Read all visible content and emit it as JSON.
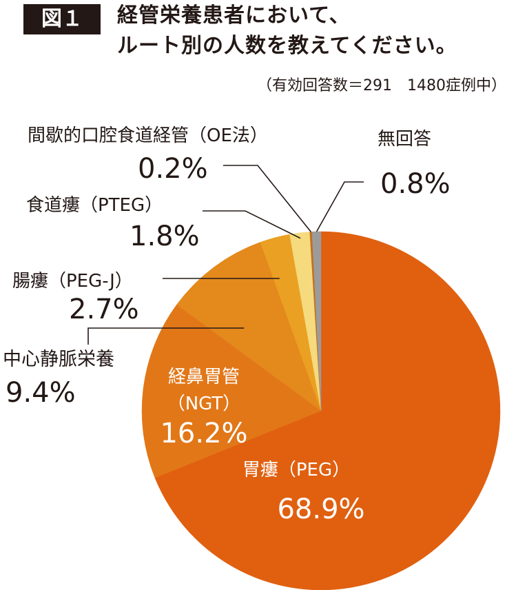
{
  "figure": {
    "badge": "図１",
    "title_line1": "経管栄養患者において、",
    "title_line2": "ルート別の人数を教えてください。",
    "note": "（有効回答数＝291　1480症例中）"
  },
  "chart_data": {
    "type": "pie",
    "start_angle": "12 o'clock, clockwise",
    "slices": [
      {
        "label": "胃瘻（PEG）",
        "label_lines": [
          "胃瘻（PEG）"
        ],
        "value_text": "68.9%",
        "value": 68.9,
        "color": "#E06010"
      },
      {
        "label": "経鼻胃管（NGT）",
        "label_lines": [
          "経鼻胃管",
          "（NGT）"
        ],
        "value_text": "16.2%",
        "value": 16.2,
        "color": "#E27718"
      },
      {
        "label": "中心静脈栄養",
        "label_lines": [
          "中心静脈栄養"
        ],
        "value_text": "9.4%",
        "value": 9.4,
        "color": "#E4891C"
      },
      {
        "label": "腸瘻（PEG-J）",
        "label_lines": [
          "腸瘻（PEG-J）"
        ],
        "value_text": "2.7%",
        "value": 2.7,
        "color": "#EAA023"
      },
      {
        "label": "食道瘻（PTEG）",
        "label_lines": [
          "食道瘻（PTEG）"
        ],
        "value_text": "1.8%",
        "value": 1.8,
        "color": "#F5DA7E"
      },
      {
        "label": "間歇的口腔食道経管（OE法）",
        "label_lines": [
          "間歇的口腔食道経管（OE法）"
        ],
        "value_text": "0.2%",
        "value": 0.2,
        "color": "#C3701E"
      },
      {
        "label": "無回答",
        "label_lines": [
          "無回答"
        ],
        "value_text": "0.8%",
        "value": 0.8,
        "color": "#9B9B9B"
      }
    ]
  }
}
